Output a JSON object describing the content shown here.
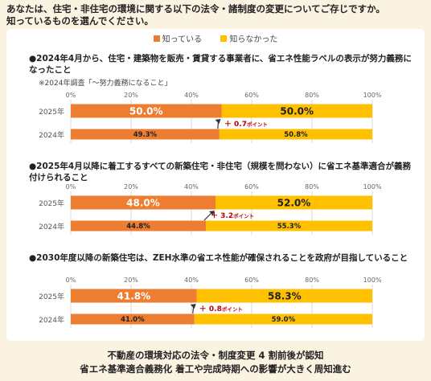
{
  "question": "あなたは、住宅・非住宅の環境に関する以下の法令・諸制度の変更についてご存じですか。\n知っているものを選んでください。",
  "legend": [
    {
      "label": "知っている",
      "color": "#ed7d31"
    },
    {
      "label": "知らなかった",
      "color": "#ffc000"
    }
  ],
  "chart_data": [
    {
      "type": "bar",
      "orientation": "horizontal",
      "stacked": true,
      "title": "●2024年4月から、住宅・建築物を販売・賃貸する事業者に、省エネ性能ラベルの表示が努力義務になったこと",
      "note": "※2024年調査「～努力義務になること」",
      "categories": [
        "2025年",
        "2024年"
      ],
      "series": [
        {
          "name": "知っている",
          "values": [
            50.0,
            49.3
          ]
        },
        {
          "name": "知らなかった",
          "values": [
            50.0,
            50.8
          ]
        }
      ],
      "labels": [
        [
          "50.0%",
          "50.0%"
        ],
        [
          "49.3%",
          "50.8%"
        ]
      ],
      "xlim": [
        0,
        100
      ],
      "ticks": [
        "0%",
        "20%",
        "40%",
        "60%",
        "80%",
        "100%"
      ],
      "annotation": "＋ 0.7ポイント"
    },
    {
      "type": "bar",
      "orientation": "horizontal",
      "stacked": true,
      "title": "●2025年4月以降に着工するすべての新築住宅・非住宅（規模を問わない）に省エネ基準適合が義務付けられること",
      "note": "",
      "categories": [
        "2025年",
        "2024年"
      ],
      "series": [
        {
          "name": "知っている",
          "values": [
            48.0,
            44.8
          ]
        },
        {
          "name": "知らなかった",
          "values": [
            52.0,
            55.3
          ]
        }
      ],
      "labels": [
        [
          "48.0%",
          "52.0%"
        ],
        [
          "44.8%",
          "55.3%"
        ]
      ],
      "xlim": [
        0,
        100
      ],
      "ticks": [
        "0%",
        "20%",
        "40%",
        "60%",
        "80%",
        "100%"
      ],
      "annotation": "＋ 3.2ポイント"
    },
    {
      "type": "bar",
      "orientation": "horizontal",
      "stacked": true,
      "title": "●2030年度以降の新築住宅は、ZEH水準の省エネ性能が確保されることを政府が目指していること",
      "note": "",
      "categories": [
        "2025年",
        "2024年"
      ],
      "series": [
        {
          "name": "知っている",
          "values": [
            41.8,
            41.0
          ]
        },
        {
          "name": "知らなかった",
          "values": [
            58.3,
            59.0
          ]
        }
      ],
      "labels": [
        [
          "41.8%",
          "58.3%"
        ],
        [
          "41.0%",
          "59.0%"
        ]
      ],
      "xlim": [
        0,
        100
      ],
      "ticks": [
        "0%",
        "20%",
        "40%",
        "60%",
        "80%",
        "100%"
      ],
      "annotation": "＋ 0.8ポイント"
    }
  ],
  "footer": {
    "line1": "不動産の環境対応の法令・制度変更 4 割前後が認知",
    "line2": "省エネ基準適合義務化 着工や完成時期への影響が大きく周知進む"
  }
}
